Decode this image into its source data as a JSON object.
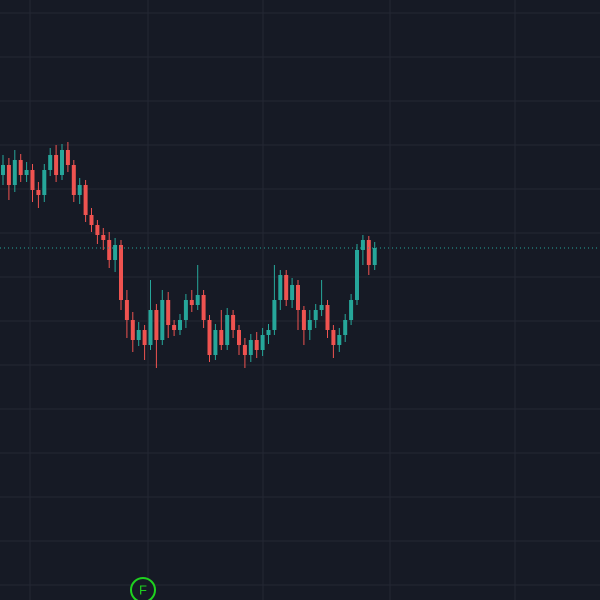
{
  "chart_data": {
    "type": "candlestick",
    "open": [
      425,
      435,
      415,
      440,
      425,
      430,
      410,
      405,
      430,
      445,
      425,
      450,
      435,
      405,
      415,
      385,
      375,
      365,
      360,
      340,
      355,
      300,
      280,
      260,
      270,
      255,
      290,
      260,
      300,
      275,
      270,
      280,
      300,
      295,
      305,
      280,
      245,
      270,
      255,
      285,
      270,
      255,
      245,
      260,
      250,
      265,
      270,
      300,
      325,
      300,
      315,
      290,
      270,
      280,
      290,
      295,
      270,
      255,
      265,
      280,
      300,
      350,
      360,
      335
    ],
    "high": [
      445,
      442,
      450,
      446,
      438,
      436,
      418,
      436,
      452,
      455,
      456,
      458,
      440,
      422,
      420,
      392,
      380,
      372,
      368,
      362,
      360,
      310,
      288,
      278,
      275,
      320,
      296,
      310,
      308,
      280,
      286,
      306,
      310,
      335,
      310,
      285,
      276,
      290,
      292,
      290,
      275,
      262,
      266,
      268,
      272,
      276,
      335,
      330,
      330,
      322,
      320,
      294,
      290,
      296,
      320,
      300,
      275,
      272,
      286,
      306,
      356,
      365,
      364,
      358
    ],
    "low": [
      415,
      400,
      408,
      418,
      418,
      398,
      392,
      398,
      424,
      418,
      420,
      428,
      398,
      396,
      378,
      368,
      356,
      350,
      332,
      328,
      290,
      262,
      248,
      254,
      240,
      250,
      232,
      255,
      262,
      264,
      265,
      272,
      288,
      290,
      272,
      238,
      240,
      250,
      250,
      262,
      245,
      232,
      238,
      242,
      244,
      256,
      265,
      290,
      294,
      292,
      270,
      255,
      260,
      272,
      284,
      262,
      242,
      248,
      258,
      275,
      295,
      335,
      325,
      330
    ],
    "close": [
      435,
      415,
      440,
      425,
      430,
      410,
      405,
      430,
      445,
      425,
      450,
      435,
      405,
      415,
      385,
      375,
      365,
      360,
      340,
      355,
      300,
      280,
      260,
      270,
      255,
      290,
      260,
      300,
      275,
      270,
      280,
      300,
      295,
      305,
      280,
      245,
      270,
      255,
      285,
      270,
      255,
      245,
      260,
      250,
      265,
      270,
      300,
      325,
      300,
      315,
      290,
      270,
      280,
      290,
      295,
      270,
      255,
      265,
      280,
      300,
      350,
      360,
      335,
      352
    ],
    "ylim": [
      0,
      600
    ],
    "up_color": "#26a69a",
    "down_color": "#ef5350",
    "last_price_line": true,
    "annotation": "F"
  }
}
